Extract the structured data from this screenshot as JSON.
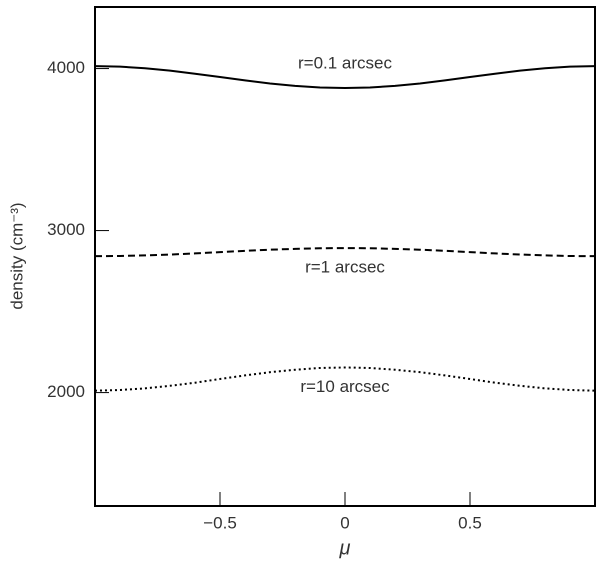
{
  "chart_data": {
    "type": "line",
    "xlabel": "μ",
    "ylabel": "density (cm⁻³)",
    "x": [
      -1,
      -0.9,
      -0.8,
      -0.7,
      -0.6,
      -0.5,
      -0.4,
      -0.3,
      -0.2,
      -0.1,
      0,
      0.1,
      0.2,
      0.3,
      0.4,
      0.5,
      0.6,
      0.7,
      0.8,
      0.9,
      1
    ],
    "series": [
      {
        "name": "r=0.1 arcsec",
        "color": "#000000",
        "dash": "solid",
        "values": [
          4015,
          4012,
          4002,
          3987,
          3968,
          3948,
          3927,
          3908,
          3893,
          3883,
          3880,
          3883,
          3893,
          3908,
          3927,
          3948,
          3968,
          3987,
          4002,
          4012,
          4015
        ]
      },
      {
        "name": "r=1 arcsec",
        "color": "#000000",
        "dash": "dashed",
        "values": [
          2842,
          2843,
          2847,
          2852,
          2859,
          2867,
          2875,
          2882,
          2887,
          2891,
          2892,
          2891,
          2887,
          2882,
          2875,
          2867,
          2859,
          2852,
          2847,
          2843,
          2842
        ]
      },
      {
        "name": "r=10 arcsec",
        "color": "#000000",
        "dash": "dotted",
        "values": [
          2012,
          2016,
          2026,
          2042,
          2061,
          2084,
          2106,
          2126,
          2141,
          2152,
          2155,
          2152,
          2141,
          2126,
          2106,
          2084,
          2061,
          2042,
          2026,
          2016,
          2012
        ]
      }
    ],
    "xlim": [
      -1,
      1
    ],
    "ylim": [
      1300,
      4380
    ],
    "xticks": [
      {
        "value": -0.5,
        "label": "−0.5"
      },
      0,
      0.5
    ],
    "yticks": [
      2000,
      3000,
      4000
    ]
  }
}
